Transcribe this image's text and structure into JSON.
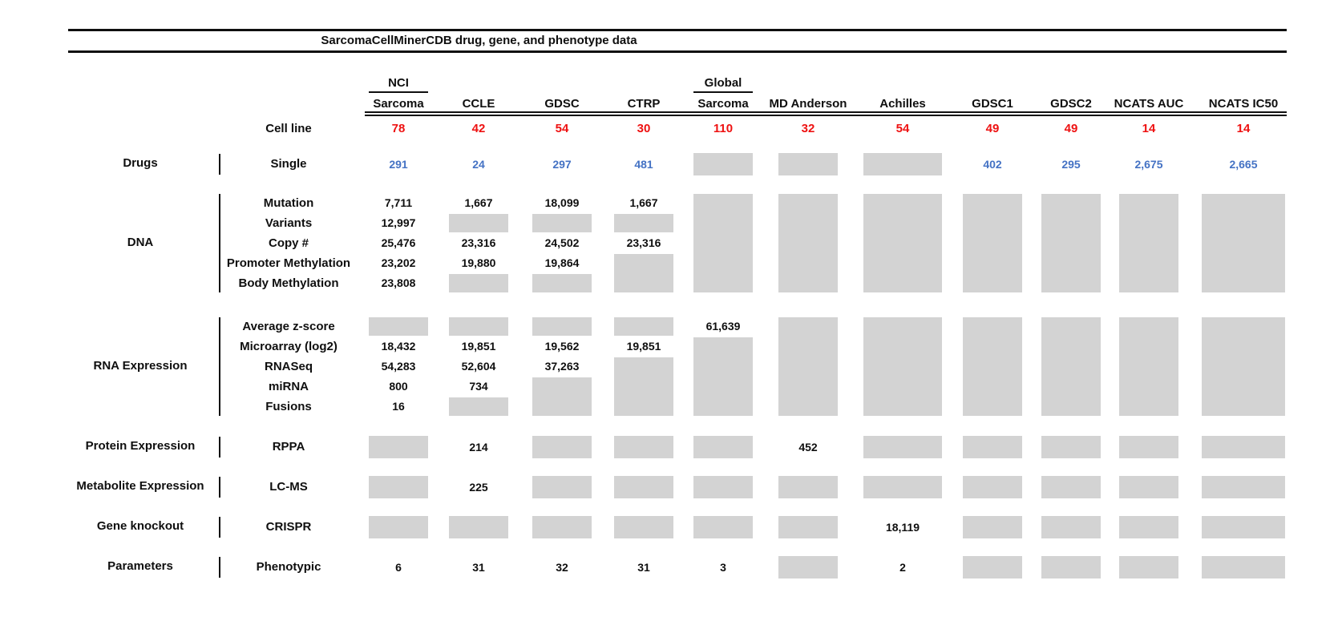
{
  "chart_data": {
    "type": "table",
    "title": "SarcomaCellMinerCDB drug, gene, and phenotype data",
    "colors": {
      "cell_line_count": "#ee1111",
      "drug_count": "#4472c4",
      "no_data_box": "#d3d3d3",
      "text": "#0f0f0f"
    },
    "columns": [
      {
        "id": "nci-sarcoma",
        "label_top": "NCI",
        "label": "Sarcoma"
      },
      {
        "id": "ccle",
        "label": "CCLE"
      },
      {
        "id": "gdsc",
        "label": "GDSC"
      },
      {
        "id": "ctrp",
        "label": "CTRP"
      },
      {
        "id": "global-sarcoma",
        "label_top": "Global",
        "label": "Sarcoma"
      },
      {
        "id": "md-anderson",
        "label": "MD Anderson"
      },
      {
        "id": "achilles",
        "label": "Achilles"
      },
      {
        "id": "gdsc1",
        "label": "GDSC1"
      },
      {
        "id": "gdsc2",
        "label": "GDSC2"
      },
      {
        "id": "ncats-auc",
        "label": "NCATS AUC"
      },
      {
        "id": "ncats-ic50",
        "label": "NCATS IC50"
      }
    ],
    "cell_line": {
      "label": "Cell line",
      "values": [
        "78",
        "42",
        "54",
        "30",
        "110",
        "32",
        "54",
        "49",
        "49",
        "14",
        "14"
      ]
    },
    "sections": [
      {
        "category": "Drugs",
        "value_color": "blue",
        "rows": [
          {
            "label": "Single",
            "cells": [
              "291",
              "24",
              "297",
              "481",
              null,
              null,
              null,
              "402",
              "295",
              "2,675",
              "2,665"
            ]
          }
        ]
      },
      {
        "category": "DNA",
        "rows": [
          {
            "label": "Mutation",
            "cells": [
              "7,711",
              "1,667",
              "18,099",
              "1,667",
              null,
              null,
              null,
              null,
              null,
              null,
              null
            ]
          },
          {
            "label": "Variants",
            "cells": [
              "12,997",
              null,
              null,
              null,
              null,
              null,
              null,
              null,
              null,
              null,
              null
            ]
          },
          {
            "label": "Copy #",
            "cells": [
              "25,476",
              "23,316",
              "24,502",
              "23,316",
              null,
              null,
              null,
              null,
              null,
              null,
              null
            ]
          },
          {
            "label": "Promoter Methylation",
            "cells": [
              "23,202",
              "19,880",
              "19,864",
              null,
              null,
              null,
              null,
              null,
              null,
              null,
              null
            ]
          },
          {
            "label": "Body Methylation",
            "cells": [
              "23,808",
              null,
              null,
              null,
              null,
              null,
              null,
              null,
              null,
              null,
              null
            ]
          }
        ]
      },
      {
        "category": "RNA Expression",
        "rows": [
          {
            "label": "Average z-score",
            "cells": [
              null,
              null,
              null,
              null,
              "61,639",
              null,
              null,
              null,
              null,
              null,
              null
            ]
          },
          {
            "label": "Microarray (log2)",
            "cells": [
              "18,432",
              "19,851",
              "19,562",
              "19,851",
              null,
              null,
              null,
              null,
              null,
              null,
              null
            ]
          },
          {
            "label": "RNASeq",
            "cells": [
              "54,283",
              "52,604",
              "37,263",
              null,
              null,
              null,
              null,
              null,
              null,
              null,
              null
            ]
          },
          {
            "label": "miRNA",
            "cells": [
              "800",
              "734",
              null,
              null,
              null,
              null,
              null,
              null,
              null,
              null,
              null
            ]
          },
          {
            "label": "Fusions",
            "cells": [
              "16",
              null,
              null,
              null,
              null,
              null,
              null,
              null,
              null,
              null,
              null
            ]
          }
        ]
      },
      {
        "category": "Protein Expression",
        "rows": [
          {
            "label": "RPPA",
            "cells": [
              null,
              "214",
              null,
              null,
              null,
              "452",
              null,
              null,
              null,
              null,
              null
            ]
          }
        ]
      },
      {
        "category": "Metabolite Expression",
        "rows": [
          {
            "label": "LC-MS",
            "cells": [
              null,
              "225",
              null,
              null,
              null,
              null,
              null,
              null,
              null,
              null,
              null
            ]
          }
        ]
      },
      {
        "category": "Gene knockout",
        "rows": [
          {
            "label": "CRISPR",
            "cells": [
              null,
              null,
              null,
              null,
              null,
              null,
              "18,119",
              null,
              null,
              null,
              null
            ]
          }
        ]
      },
      {
        "category": "Parameters",
        "rows": [
          {
            "label": "Phenotypic",
            "cells": [
              "6",
              "31",
              "32",
              "31",
              "3",
              null,
              "2",
              null,
              null,
              null,
              null
            ]
          }
        ]
      }
    ]
  }
}
